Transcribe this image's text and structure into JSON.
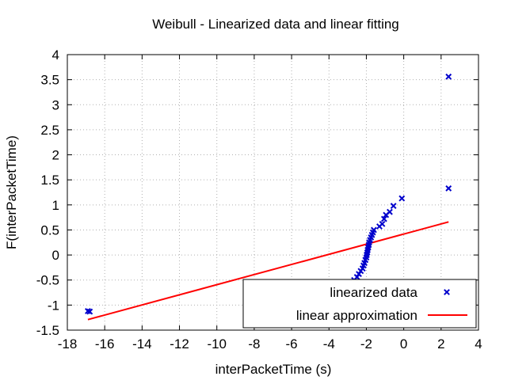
{
  "chart_data": {
    "type": "scatter",
    "title": "Weibull - Linearized data and linear fitting",
    "xlabel": "interPacketTime (s)",
    "ylabel": "F(interPacketTime)",
    "xlim": [
      -18,
      4
    ],
    "ylim": [
      -1.5,
      4
    ],
    "xticks": [
      -18,
      -16,
      -14,
      -12,
      -10,
      -8,
      -6,
      -4,
      -2,
      0,
      2,
      4
    ],
    "yticks": [
      -1.5,
      -1,
      -0.5,
      0,
      0.5,
      1,
      1.5,
      2,
      2.5,
      3,
      3.5,
      4
    ],
    "xtick_labels": [
      "-18",
      "-16",
      "-14",
      "-12",
      "-10",
      "-8",
      "-6",
      "-4",
      "-2",
      "0",
      "2",
      "4"
    ],
    "ytick_labels": [
      "-1.5",
      "-1",
      "-0.5",
      "0",
      "0.5",
      "1",
      "1.5",
      "2",
      "2.5",
      "3",
      "3.5",
      "4"
    ],
    "grid": true,
    "legend_position": "bottom-right",
    "series": [
      {
        "name": "linearized data",
        "kind": "scatter",
        "marker": "x",
        "color": "#0000cc",
        "points": [
          [
            -16.9,
            -1.12
          ],
          [
            -16.8,
            -1.13
          ],
          [
            -4.7,
            -0.93
          ],
          [
            -3.9,
            -0.87
          ],
          [
            -3.8,
            -0.83
          ],
          [
            -3.6,
            -0.78
          ],
          [
            -3.4,
            -0.73
          ],
          [
            -3.25,
            -0.7
          ],
          [
            -2.75,
            -0.55
          ],
          [
            -2.65,
            -0.5
          ],
          [
            -2.5,
            -0.44
          ],
          [
            -2.4,
            -0.38
          ],
          [
            -2.3,
            -0.32
          ],
          [
            -2.2,
            -0.27
          ],
          [
            -2.15,
            -0.21
          ],
          [
            -2.1,
            -0.16
          ],
          [
            -2.05,
            -0.1
          ],
          [
            -2.0,
            -0.05
          ],
          [
            -1.98,
            0.0
          ],
          [
            -1.95,
            0.05
          ],
          [
            -1.93,
            0.1
          ],
          [
            -1.9,
            0.15
          ],
          [
            -1.87,
            0.2
          ],
          [
            -1.85,
            0.25
          ],
          [
            -1.8,
            0.3
          ],
          [
            -1.75,
            0.35
          ],
          [
            -1.7,
            0.4
          ],
          [
            -1.65,
            0.45
          ],
          [
            -1.6,
            0.5
          ],
          [
            -1.3,
            0.57
          ],
          [
            -1.15,
            0.62
          ],
          [
            -1.05,
            0.72
          ],
          [
            -0.95,
            0.8
          ],
          [
            -0.75,
            0.86
          ],
          [
            -0.55,
            0.98
          ],
          [
            -0.1,
            1.13
          ],
          [
            2.4,
            1.33
          ],
          [
            2.4,
            3.56
          ]
        ]
      },
      {
        "name": "linear approximation",
        "kind": "line",
        "color": "#ff0000",
        "points": [
          [
            -16.9,
            -1.29
          ],
          [
            2.4,
            0.66
          ]
        ]
      }
    ]
  }
}
